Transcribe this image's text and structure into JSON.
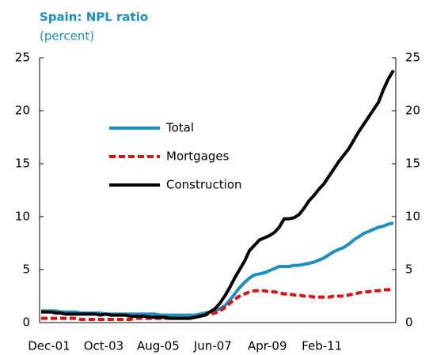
{
  "chart_data": {
    "type": "line",
    "title": "Spain: NPL ratio",
    "subtitle": "(percent)",
    "categories": [
      "Dec-01",
      null,
      null,
      null,
      null,
      null,
      null,
      null,
      null,
      null,
      null,
      "Oct-03",
      null,
      null,
      null,
      null,
      null,
      null,
      null,
      null,
      null,
      null,
      "Aug-05",
      null,
      null,
      null,
      null,
      null,
      null,
      null,
      null,
      null,
      null,
      "Jun-07",
      null,
      null,
      null,
      null,
      null,
      null,
      null,
      null,
      null,
      null,
      "Apr-09",
      null,
      null,
      null,
      null,
      null,
      null,
      null,
      null,
      null,
      null,
      "Feb-11",
      null,
      null,
      null,
      null,
      null,
      null,
      null,
      null,
      null,
      null,
      null,
      null,
      null,
      null,
      null,
      null
    ],
    "series": [
      {
        "name": "Total",
        "color": "#1a8fc0",
        "dash": false,
        "values": [
          1.1,
          1.1,
          1.1,
          1.1,
          1.0,
          1.0,
          1.0,
          1.0,
          0.9,
          0.9,
          0.9,
          0.9,
          0.9,
          0.8,
          0.8,
          0.8,
          0.8,
          0.8,
          0.8,
          0.8,
          0.8,
          0.8,
          0.8,
          0.8,
          0.7,
          0.7,
          0.7,
          0.7,
          0.7,
          0.7,
          0.7,
          0.7,
          0.8,
          0.9,
          1.0,
          1.1,
          1.3,
          1.6,
          2.1,
          2.7,
          3.3,
          3.8,
          4.2,
          4.5,
          4.6,
          4.7,
          4.9,
          5.1,
          5.3,
          5.3,
          5.3,
          5.4,
          5.4,
          5.5,
          5.6,
          5.7,
          5.9,
          6.1,
          6.4,
          6.7,
          6.9,
          7.1,
          7.4,
          7.8,
          8.1,
          8.4,
          8.6,
          8.8,
          9.0,
          9.1,
          9.3,
          9.4
        ]
      },
      {
        "name": "Mortgages",
        "color": "#e01010",
        "dash": true,
        "values": [
          0.4,
          0.4,
          0.4,
          0.4,
          0.4,
          0.4,
          0.4,
          0.4,
          0.3,
          0.3,
          0.3,
          0.3,
          0.3,
          0.3,
          0.3,
          0.3,
          0.3,
          0.3,
          0.3,
          0.4,
          0.4,
          0.4,
          0.4,
          0.4,
          0.4,
          0.4,
          0.4,
          0.4,
          0.4,
          0.4,
          0.4,
          0.5,
          0.6,
          0.7,
          0.8,
          0.9,
          1.1,
          1.4,
          1.8,
          2.2,
          2.5,
          2.7,
          2.9,
          3.0,
          3.0,
          3.0,
          2.9,
          2.9,
          2.8,
          2.7,
          2.7,
          2.6,
          2.6,
          2.5,
          2.5,
          2.4,
          2.4,
          2.4,
          2.4,
          2.5,
          2.5,
          2.5,
          2.6,
          2.7,
          2.8,
          2.9,
          2.9,
          3.0,
          3.0,
          3.1,
          3.1,
          3.2
        ]
      },
      {
        "name": "Construction",
        "color": "#000000",
        "dash": false,
        "values": [
          1.0,
          1.0,
          1.0,
          0.9,
          0.9,
          0.8,
          0.8,
          0.8,
          0.8,
          0.8,
          0.8,
          0.8,
          0.7,
          0.8,
          0.7,
          0.7,
          0.7,
          0.7,
          0.6,
          0.6,
          0.6,
          0.6,
          0.5,
          0.5,
          0.5,
          0.5,
          0.4,
          0.4,
          0.4,
          0.4,
          0.4,
          0.5,
          0.6,
          0.7,
          1.0,
          1.3,
          1.8,
          2.5,
          3.3,
          4.2,
          5.0,
          5.8,
          6.8,
          7.3,
          7.8,
          8.0,
          8.2,
          8.5,
          9.0,
          9.8,
          9.8,
          9.9,
          10.2,
          10.8,
          11.5,
          12.0,
          12.6,
          13.1,
          13.8,
          14.5,
          15.2,
          15.8,
          16.4,
          17.2,
          18.0,
          18.7,
          19.4,
          20.1,
          20.8,
          22.0,
          23.0,
          23.8
        ]
      }
    ],
    "ylim": [
      0,
      25
    ],
    "yticks": [
      0,
      5,
      10,
      15,
      20,
      25
    ],
    "y2lim": [
      0,
      25
    ],
    "y2ticks": [
      0,
      5,
      10,
      15,
      20,
      25
    ],
    "grid": false,
    "legend": "upper left"
  }
}
